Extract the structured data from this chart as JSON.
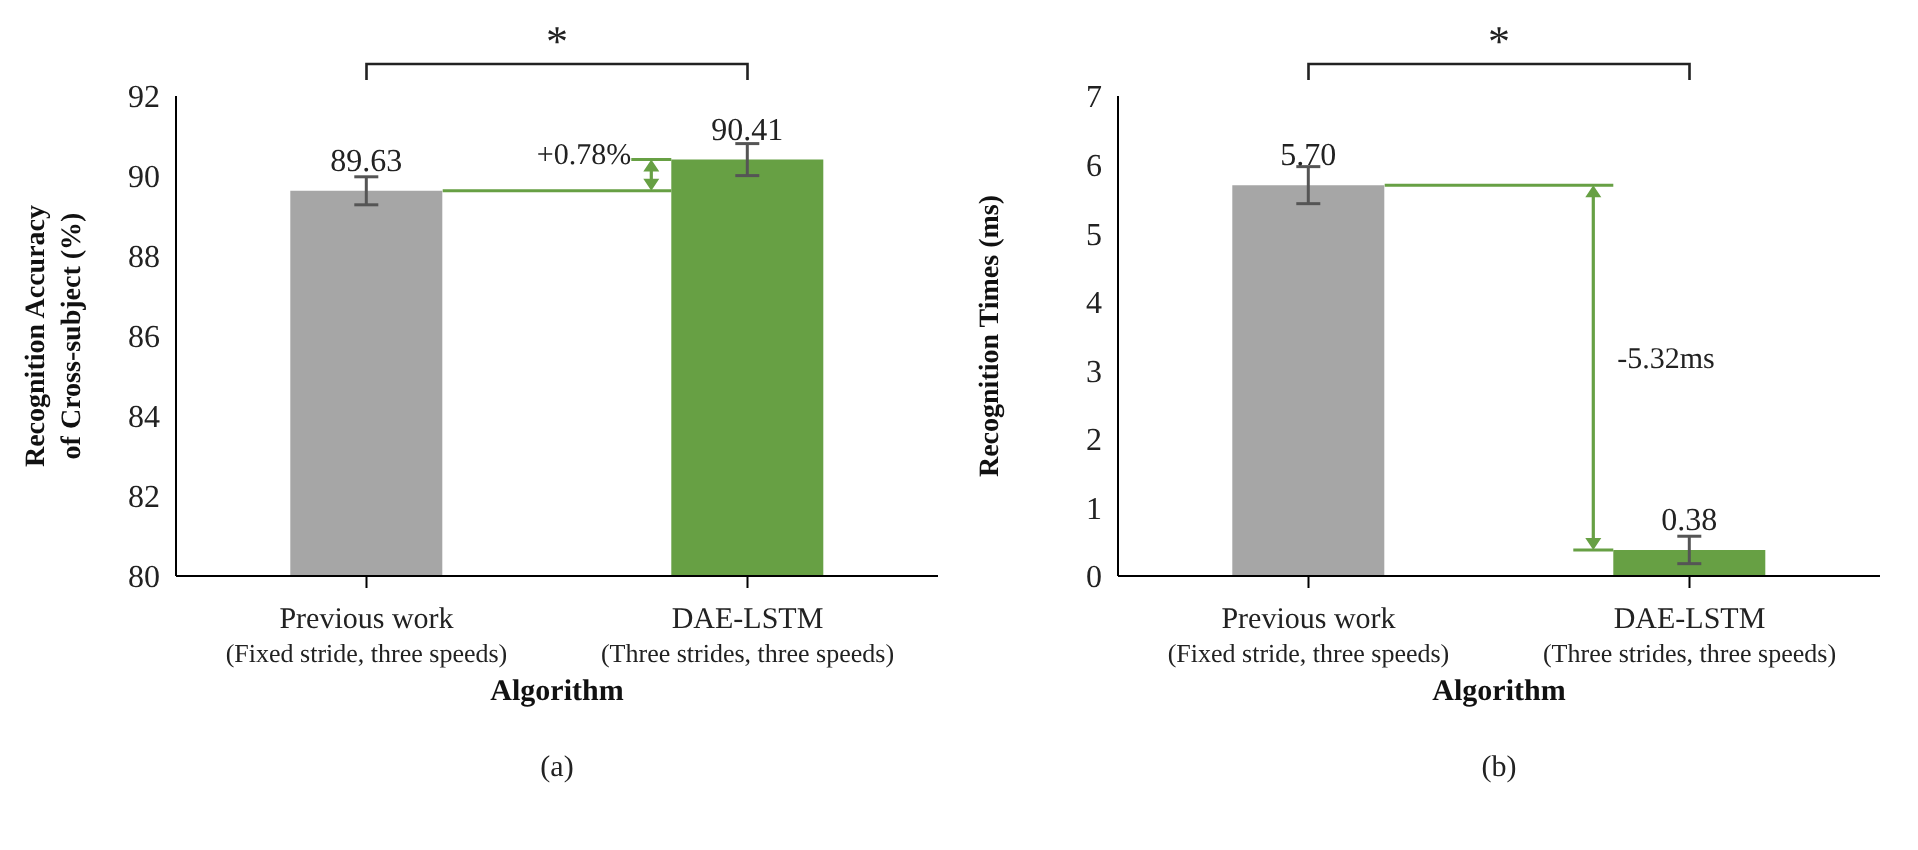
{
  "chart_data": [
    {
      "type": "bar",
      "categories": [
        "Previous work\n(Fixed stride, three speeds)",
        "DAE-LSTM\n(Three strides, three speeds)"
      ],
      "values": [
        89.63,
        90.41
      ],
      "colors": [
        "#a6a6a6",
        "#67a044"
      ],
      "errors": [
        0.35,
        0.4
      ],
      "value_labels": [
        "89.63",
        "90.41"
      ],
      "ylim": [
        80,
        92
      ],
      "yticks": [
        80,
        82,
        84,
        86,
        88,
        90,
        92
      ],
      "xlabel": "Algorithm",
      "ylabel": "Recognition Accuracy\nof Cross-subject (%)",
      "grid": false,
      "legend": false,
      "annotations": [
        "*",
        "+0.78%",
        "(a)"
      ]
    },
    {
      "type": "bar",
      "categories": [
        "Previous work\n(Fixed stride, three speeds)",
        "DAE-LSTM\n(Three strides, three speeds)"
      ],
      "values": [
        5.7,
        0.38
      ],
      "colors": [
        "#a6a6a6",
        "#67a044"
      ],
      "errors": [
        0.27,
        0.2
      ],
      "value_labels": [
        "5.70",
        "0.38"
      ],
      "ylim": [
        0,
        7
      ],
      "yticks": [
        0,
        1,
        2,
        3,
        4,
        5,
        6,
        7
      ],
      "xlabel": "Algorithm",
      "ylabel": "Recognition Times (ms)",
      "grid": false,
      "legend": false,
      "annotations": [
        "*",
        "-5.32ms",
        "(b)"
      ]
    }
  ]
}
